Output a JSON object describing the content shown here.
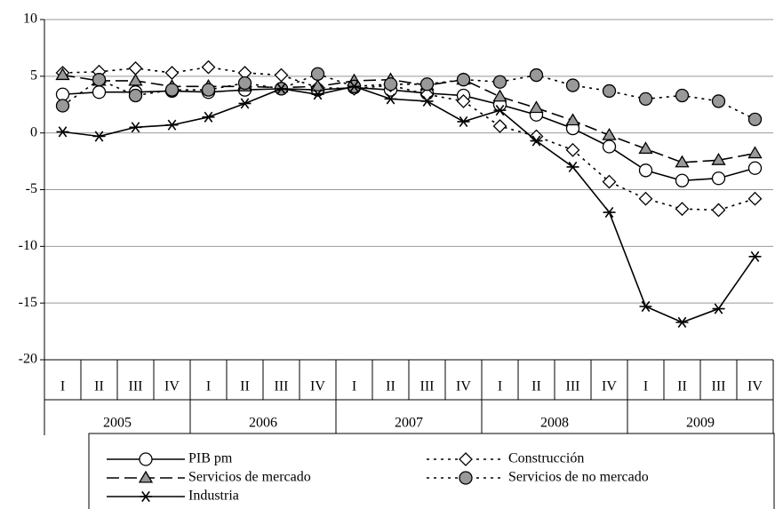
{
  "chart_data": {
    "type": "line",
    "categories": [
      "I",
      "II",
      "III",
      "IV",
      "I",
      "II",
      "III",
      "IV",
      "I",
      "II",
      "III",
      "IV",
      "I",
      "II",
      "III",
      "IV",
      "I",
      "II",
      "III",
      "IV"
    ],
    "years": [
      "2005",
      "2006",
      "2007",
      "2008",
      "2009"
    ],
    "ylim": [
      -20,
      10
    ],
    "yticks": [
      -20,
      -15,
      -10,
      -5,
      0,
      5,
      10
    ],
    "grid": true,
    "series": [
      {
        "name": "PIB pm",
        "color": "#000000",
        "marker": "circle",
        "marker_fill": "#ffffff",
        "dash": "solid",
        "values": [
          3.4,
          3.6,
          3.6,
          3.7,
          3.6,
          3.8,
          3.9,
          3.8,
          4.0,
          3.8,
          3.5,
          3.3,
          2.5,
          1.6,
          0.4,
          -1.2,
          -3.3,
          -4.2,
          -4.0,
          -3.1
        ]
      },
      {
        "name": "Construcción",
        "color": "#000000",
        "marker": "diamond",
        "marker_fill": "#ffffff",
        "dash": "dotted",
        "values": [
          5.3,
          5.4,
          5.7,
          5.3,
          5.8,
          5.3,
          5.1,
          4.0,
          3.9,
          4.2,
          3.4,
          2.8,
          0.6,
          -0.3,
          -1.5,
          -4.3,
          -5.8,
          -6.7,
          -6.8,
          -5.8
        ]
      },
      {
        "name": "Servicios de mercado",
        "color": "#000000",
        "marker": "triangle",
        "marker_fill": "#999999",
        "dash": "dashed",
        "values": [
          5.1,
          4.6,
          4.6,
          4.1,
          4.1,
          4.1,
          4.0,
          4.1,
          4.6,
          4.7,
          4.2,
          4.7,
          3.2,
          2.2,
          1.1,
          -0.2,
          -1.4,
          -2.6,
          -2.4,
          -1.8
        ]
      },
      {
        "name": "Servicios de no mercado",
        "color": "#000000",
        "marker": "circle",
        "marker_fill": "#999999",
        "dash": "dotted",
        "values": [
          2.4,
          4.7,
          3.3,
          3.8,
          3.8,
          4.4,
          3.9,
          5.2,
          4.1,
          4.3,
          4.3,
          4.7,
          4.5,
          5.1,
          4.2,
          3.7,
          3.0,
          3.3,
          2.8,
          1.2
        ]
      },
      {
        "name": "Industria",
        "color": "#000000",
        "marker": "star",
        "marker_fill": "#000000",
        "dash": "solid",
        "values": [
          0.1,
          -0.3,
          0.5,
          0.7,
          1.4,
          2.6,
          3.9,
          3.4,
          4.1,
          3.0,
          2.8,
          1.0,
          2.0,
          -0.7,
          -3.0,
          -7.0,
          -15.3,
          -16.7,
          -15.5,
          -10.9
        ]
      }
    ]
  }
}
